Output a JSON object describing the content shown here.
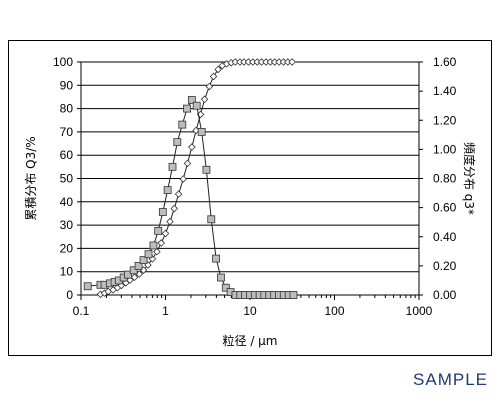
{
  "chart_data": {
    "type": "line",
    "xlabel": "粒径 / μm",
    "ylabel_left": "累積分布 Q3/%",
    "ylabel_right": "頻度分布 q3*",
    "x_scale": "log",
    "xlim": [
      0.1,
      1000
    ],
    "ylim_left": [
      0,
      100
    ],
    "ylim_right": [
      0,
      1.6
    ],
    "x_ticks": [
      "0.1",
      "1",
      "10",
      "100",
      "1000"
    ],
    "y_left_ticks": [
      "0",
      "10",
      "20",
      "30",
      "40",
      "50",
      "60",
      "70",
      "80",
      "90",
      "100"
    ],
    "y_right_ticks": [
      "0.00",
      "0.20",
      "0.40",
      "0.60",
      "0.80",
      "1.00",
      "1.20",
      "1.40",
      "1.60"
    ],
    "grid": "horizontal",
    "series": [
      {
        "axis": "left",
        "marker": "diamond",
        "x": [
          0.17,
          0.19,
          0.21,
          0.24,
          0.27,
          0.3,
          0.34,
          0.38,
          0.43,
          0.49,
          0.55,
          0.62,
          0.7,
          0.79,
          0.89,
          1.0,
          1.13,
          1.27,
          1.43,
          1.62,
          1.82,
          2.05,
          2.3,
          2.6,
          2.9,
          3.3,
          3.7,
          4.2,
          4.7,
          5.3,
          6.0,
          6.7,
          7.6,
          8.5,
          9.6,
          10.8,
          12.2,
          13.7,
          15.5,
          17.4,
          19.6,
          22.1,
          24.9,
          28.0,
          31.5
        ],
        "values": [
          0.3,
          0.8,
          1.5,
          2.2,
          3.1,
          4.1,
          5.2,
          6.4,
          7.6,
          9.0,
          10.7,
          12.9,
          15.5,
          18.6,
          22.3,
          26.4,
          31.5,
          37.1,
          43.3,
          49.8,
          56.5,
          63.5,
          70.6,
          77.5,
          84.0,
          89.5,
          93.8,
          96.8,
          98.4,
          99.2,
          99.7,
          100,
          100,
          100,
          100,
          100,
          100,
          100,
          100,
          100,
          100,
          100,
          100,
          100,
          100
        ]
      },
      {
        "axis": "right",
        "marker": "square",
        "x": [
          0.12,
          0.17,
          0.19,
          0.22,
          0.25,
          0.28,
          0.32,
          0.36,
          0.42,
          0.48,
          0.55,
          0.63,
          0.72,
          0.82,
          0.93,
          1.06,
          1.21,
          1.38,
          1.58,
          1.8,
          2.05,
          2.34,
          2.68,
          3.05,
          3.48,
          3.97,
          4.53,
          5.17,
          5.9,
          6.73,
          7.68,
          8.76,
          10.0,
          11.4,
          13.0,
          14.8,
          16.9,
          19.3,
          22.0,
          25.1,
          28.7,
          32.7
        ],
        "values": [
          0.06,
          0.07,
          0.07,
          0.08,
          0.09,
          0.1,
          0.12,
          0.14,
          0.17,
          0.2,
          0.24,
          0.28,
          0.34,
          0.44,
          0.57,
          0.72,
          0.88,
          1.05,
          1.17,
          1.28,
          1.34,
          1.3,
          1.12,
          0.86,
          0.52,
          0.25,
          0.12,
          0.05,
          0.02,
          0.0,
          0.0,
          0.0,
          0.0,
          0.0,
          0.0,
          0.0,
          0.0,
          0.0,
          0.0,
          0.0,
          0.0,
          0.0
        ]
      }
    ]
  },
  "watermark": "SAMPLE"
}
